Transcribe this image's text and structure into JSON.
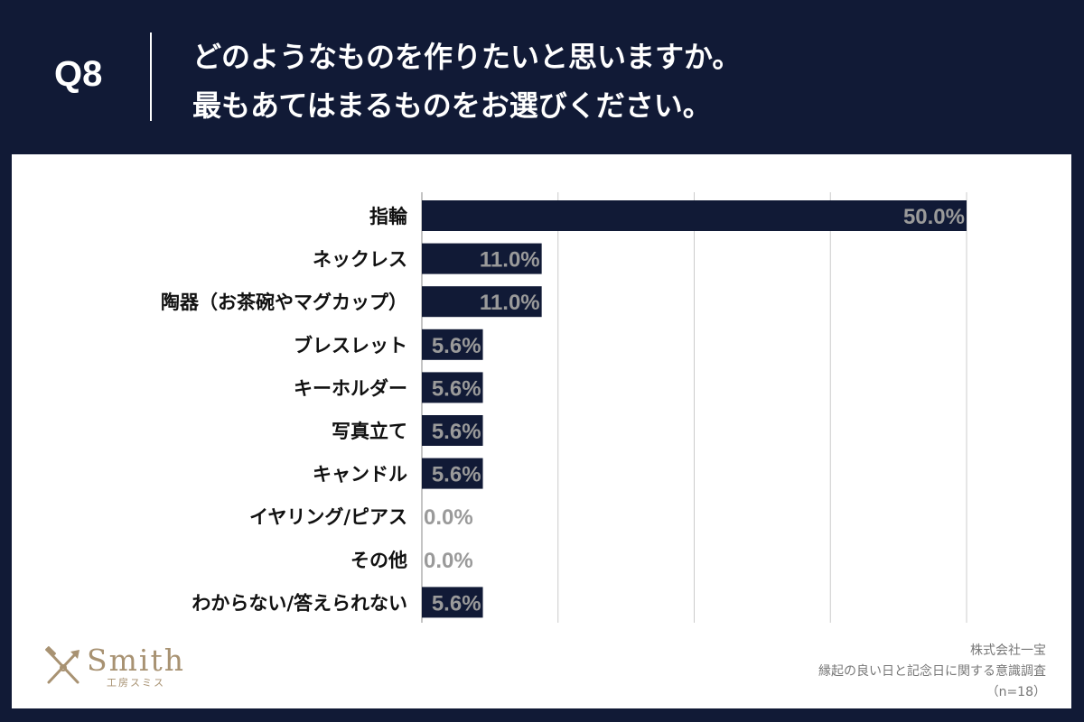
{
  "header": {
    "question_number": "Q8",
    "question_line1": "どのようなものを作りたいと思いますか。",
    "question_line2": "最もあてはまるものをお選びください。"
  },
  "colors": {
    "background": "#111a36",
    "bar": "#111a36",
    "label_on_bar": "#9a9a9a",
    "grid": "#cccccc",
    "logo": "#a89272"
  },
  "chart_data": {
    "type": "bar",
    "orientation": "horizontal",
    "categories": [
      "指輪",
      "ネックレス",
      "陶器（お茶碗やマグカップ）",
      "ブレスレット",
      "キーホルダー",
      "写真立て",
      "キャンドル",
      "イヤリング/ピアス",
      "その他",
      "わからない/答えられない"
    ],
    "values": [
      50.0,
      11.0,
      11.0,
      5.6,
      5.6,
      5.6,
      5.6,
      0.0,
      0.0,
      5.6
    ],
    "value_labels": [
      "50.0%",
      "11.0%",
      "11.0%",
      "5.6%",
      "5.6%",
      "5.6%",
      "5.6%",
      "0.0%",
      "0.0%",
      "5.6%"
    ],
    "xlim": [
      0,
      50
    ],
    "gridlines": [
      0,
      12.5,
      25,
      37.5,
      50
    ],
    "title": "",
    "xlabel": "",
    "ylabel": ""
  },
  "logo": {
    "word": "Smith",
    "subtitle": "工房スミス"
  },
  "credit": {
    "company": "株式会社一宝",
    "survey": "縁起の良い日と記念日に関する意識調査",
    "sample": "（n=18）"
  }
}
